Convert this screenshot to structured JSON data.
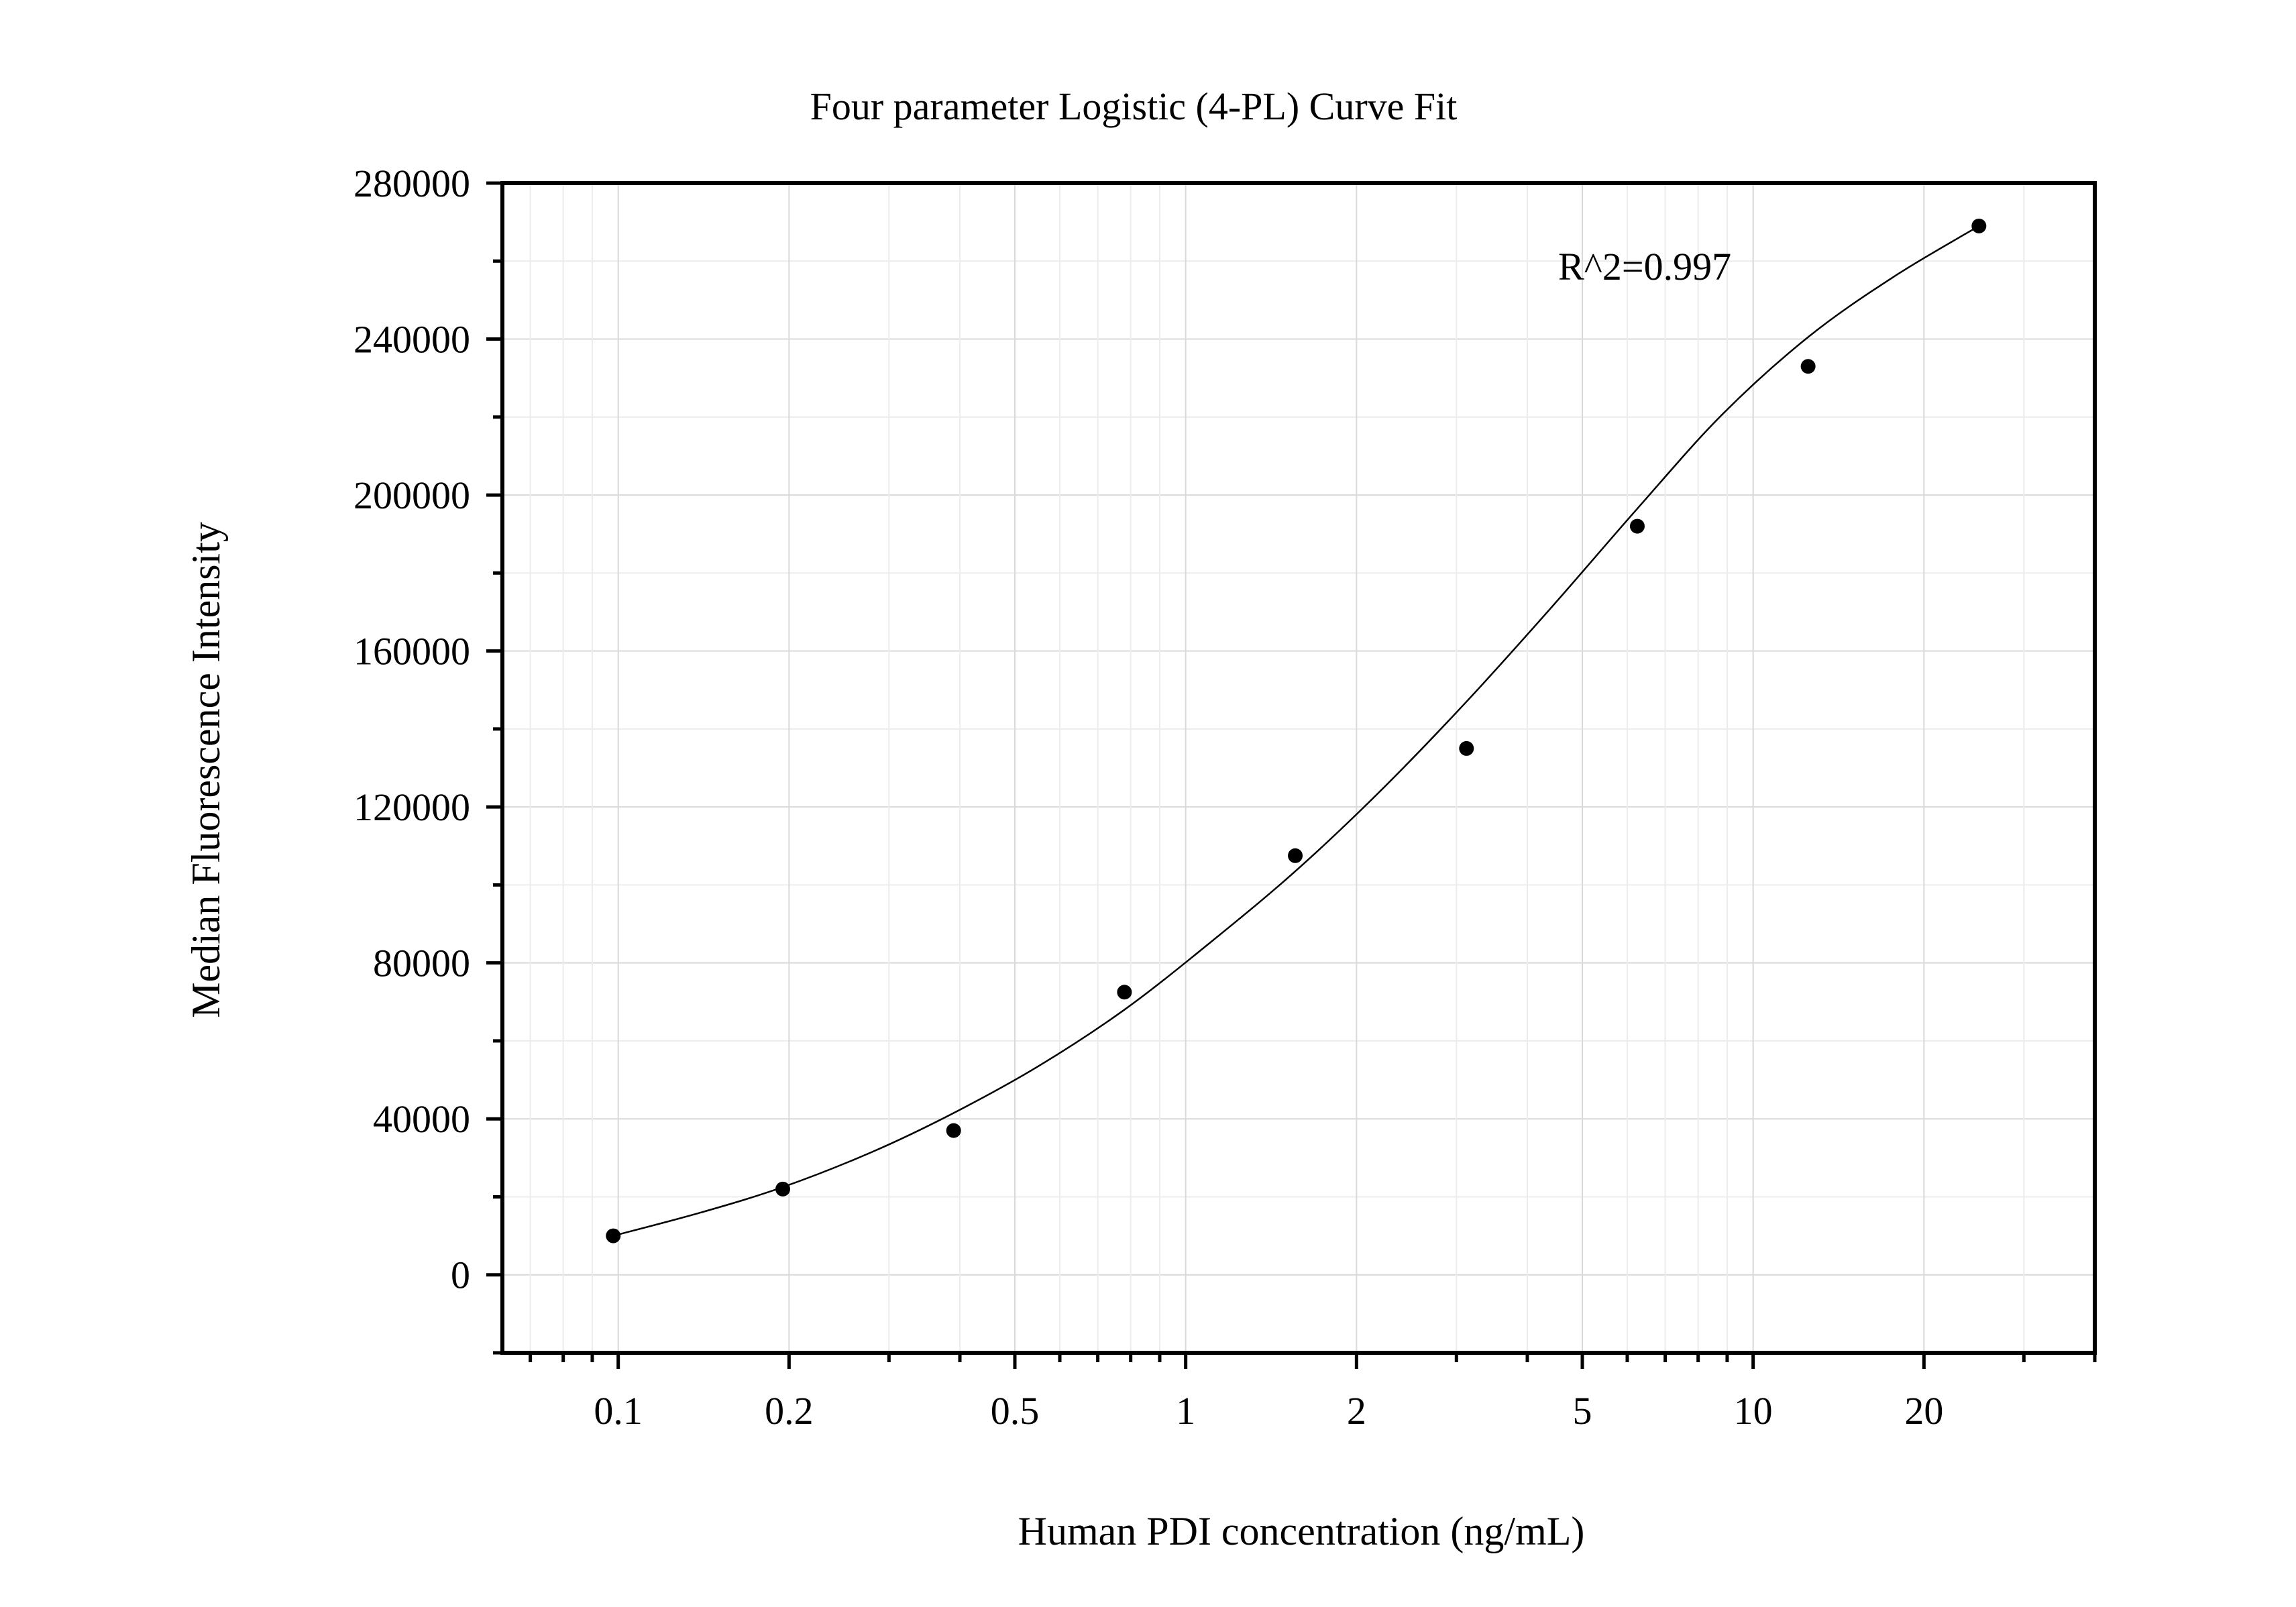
{
  "chart_data": {
    "type": "scatter",
    "title": "Four parameter Logistic (4-PL) Curve Fit",
    "xlabel": "Human PDI concentration (ng/mL)",
    "ylabel": "Median Fluorescence Intensity",
    "x_scale": "log",
    "xlim": [
      0.0625,
      40
    ],
    "ylim": [
      -20000,
      280000
    ],
    "x_ticks": [
      0.1,
      0.2,
      0.5,
      1,
      2,
      5,
      10,
      20
    ],
    "x_tick_labels": [
      "0.1",
      "0.2",
      "0.5",
      "1",
      "2",
      "5",
      "10",
      "20"
    ],
    "y_ticks": [
      0,
      40000,
      80000,
      120000,
      160000,
      200000,
      240000,
      280000
    ],
    "y_tick_labels": [
      "0",
      "40000",
      "80000",
      "120000",
      "160000",
      "200000",
      "240000",
      "280000"
    ],
    "grid": true,
    "series": [
      {
        "points": [
          {
            "x": 0.098,
            "y": 10000
          },
          {
            "x": 0.195,
            "y": 22000
          },
          {
            "x": 0.39,
            "y": 37000
          },
          {
            "x": 0.78,
            "y": 72500
          },
          {
            "x": 1.56,
            "y": 107500
          },
          {
            "x": 3.125,
            "y": 135000
          },
          {
            "x": 6.25,
            "y": 192000
          },
          {
            "x": 12.5,
            "y": 233000
          },
          {
            "x": 25,
            "y": 269000
          }
        ]
      }
    ],
    "fit_curve": {
      "model": "4-PL",
      "x": [
        0.098,
        0.14,
        0.195,
        0.28,
        0.39,
        0.55,
        0.78,
        1.1,
        1.56,
        2.2,
        3.125,
        4.4,
        6.25,
        8.8,
        12.5,
        17.7,
        25
      ],
      "y": [
        10000,
        16000,
        22500,
        31500,
        41500,
        53500,
        68000,
        85000,
        103500,
        124000,
        147000,
        171000,
        196500,
        220500,
        240500,
        256000,
        269000
      ]
    },
    "annotation": "R^2=0.997"
  }
}
